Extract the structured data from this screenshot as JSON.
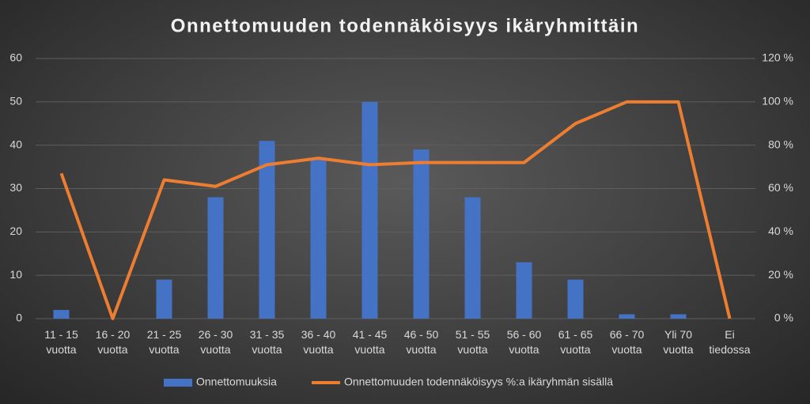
{
  "chart_data": {
    "type": "bar_line",
    "title": "Onnettomuuden todennäköisyys ikäryhmittäin",
    "categories": [
      "11 - 15 vuotta",
      "16 - 20 vuotta",
      "21 - 25 vuotta",
      "26 - 30 vuotta",
      "31 - 35 vuotta",
      "36 - 40 vuotta",
      "41 - 45 vuotta",
      "46 - 50 vuotta",
      "51 - 55 vuotta",
      "56 - 60 vuotta",
      "61 - 65 vuotta",
      "66 - 70 vuotta",
      "Yli 70 vuotta",
      "Ei tiedossa"
    ],
    "series": [
      {
        "name": "Onnettomuuksia",
        "type": "bar",
        "color": "#4472c4",
        "values": [
          2,
          0,
          9,
          28,
          41,
          37,
          50,
          39,
          28,
          13,
          9,
          1,
          1,
          0
        ]
      },
      {
        "name": "Onnettomuuden todennäköisyys %:a ikäryhmän sisällä",
        "type": "line",
        "color": "#ed7d31",
        "axis": "y2",
        "values": [
          67,
          0,
          64,
          61,
          71,
          74,
          71,
          72,
          72,
          72,
          90,
          100,
          100,
          0
        ]
      }
    ],
    "ylim": [
      0,
      60
    ],
    "yticks": [
      0,
      10,
      20,
      30,
      40,
      50,
      60
    ],
    "y2lim": [
      0,
      120
    ],
    "y2ticks": [
      {
        "value": 0,
        "label": "0 %"
      },
      {
        "value": 20,
        "label": "20 %"
      },
      {
        "value": 40,
        "label": "40 %"
      },
      {
        "value": 60,
        "label": "60 %"
      },
      {
        "value": 80,
        "label": "80 %"
      },
      {
        "value": 100,
        "label": "100 %"
      },
      {
        "value": 120,
        "label": "120 %"
      }
    ],
    "grid": true,
    "legend": "bottom"
  }
}
